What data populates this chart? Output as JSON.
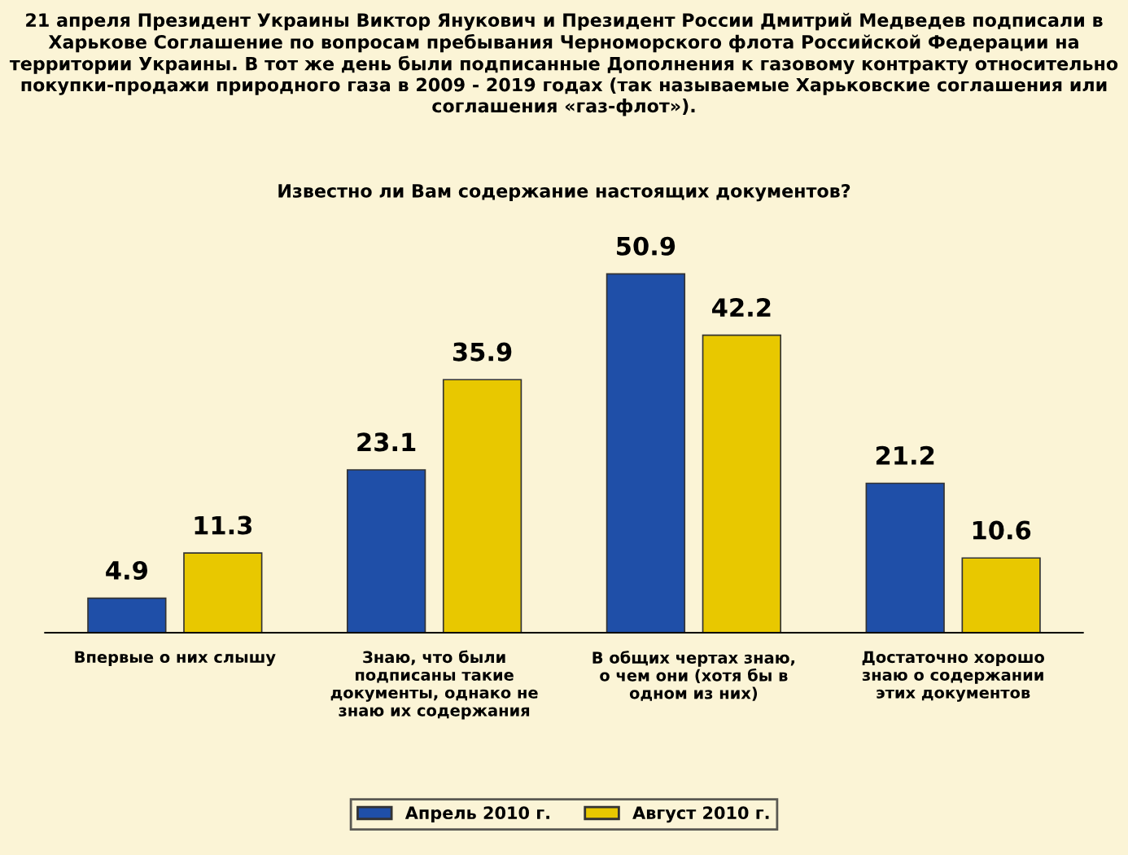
{
  "chart_data": {
    "type": "bar",
    "title": "21 апреля Президент Украины Виктор Янукович и Президент России Дмитрий Медведев подписали в Харькове Соглашение по вопросам пребывания Черноморского флота Российской Федерации на территории Украины. В тот же день были подписанные Дополнения к газовому контракту относительно покупки-продажи природного газа в 2009 - 2019 годах (так называемые Харьковские соглашения или соглашения «газ-флот»).",
    "subtitle": "Известно ли Вам содержание настоящих документов?",
    "categories": [
      "Впервые о них слышу",
      "Знаю, что были подписаны такие документы, однако не знаю их содержания",
      "В общих чертах знаю, о чем они (хотя бы в одном из них)",
      "Достаточно хорошо знаю о содержании этих документов"
    ],
    "series": [
      {
        "name": "Апрель 2010 г.",
        "color": "#1f4fa8",
        "values": [
          4.9,
          23.1,
          50.9,
          21.2
        ]
      },
      {
        "name": "Август 2010 г.",
        "color": "#e8c800",
        "values": [
          11.3,
          35.9,
          42.2,
          10.6
        ]
      }
    ],
    "data_labels": true,
    "legend": "bottom",
    "grid": false
  }
}
